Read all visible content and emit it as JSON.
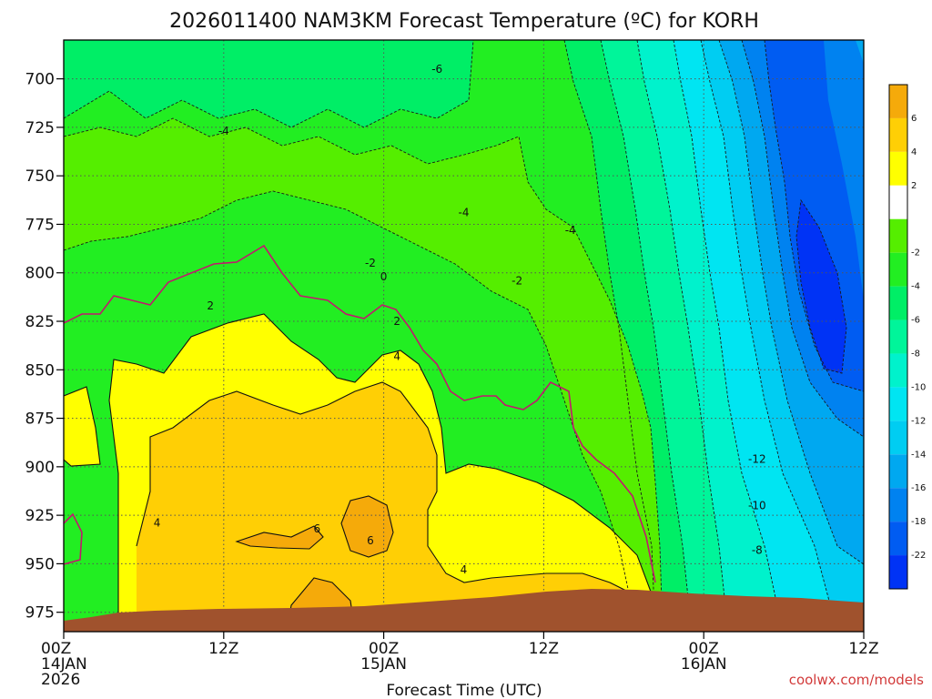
{
  "title": "2026011400 NAM3KM Forecast Temperature (ºC) for KORH",
  "credit": "coolwx.com/models",
  "colors": {
    "terrain": "#a0522d",
    "zero_line": "#c2186f"
  },
  "chart_data": {
    "type": "heatmap",
    "title": "2026011400 NAM3KM Forecast Temperature (ºC) for KORH",
    "xlabel": "Forecast Time (UTC)",
    "ylabel": "",
    "x_range_hours": [
      0,
      60
    ],
    "y_range_hpa": [
      680,
      985
    ],
    "y_ticks": [
      700,
      725,
      750,
      775,
      800,
      825,
      850,
      875,
      900,
      925,
      950,
      975
    ],
    "x_ticks": [
      {
        "hour": 0,
        "lines": [
          "00Z",
          "14JAN",
          "2026"
        ]
      },
      {
        "hour": 12,
        "lines": [
          "12Z"
        ]
      },
      {
        "hour": 24,
        "lines": [
          "00Z",
          "15JAN"
        ]
      },
      {
        "hour": 36,
        "lines": [
          "12Z"
        ]
      },
      {
        "hour": 48,
        "lines": [
          "00Z",
          "16JAN"
        ]
      },
      {
        "hour": 60,
        "lines": [
          "12Z"
        ]
      }
    ],
    "grid": true,
    "colorbar": {
      "ticks": [
        6,
        4,
        2,
        -2,
        -4,
        -6,
        -8,
        -10,
        -12,
        -14,
        -16,
        -18,
        -22
      ],
      "bands": [
        {
          "label": "≥6",
          "color": "#f5aa0a"
        },
        {
          "label": "4 to 6",
          "color": "#ffcf05"
        },
        {
          "label": "2 to 4",
          "color": "#ffff00"
        },
        {
          "label": "-2 to 2",
          "color": "#ffffff"
        },
        {
          "label": "-4 to -2",
          "color": "#55ee00"
        },
        {
          "label": "-6 to -4",
          "color": "#22ee22"
        },
        {
          "label": "-8 to -6",
          "color": "#00ee66"
        },
        {
          "label": "-10 to -8",
          "color": "#00f59a"
        },
        {
          "label": "-12 to -10",
          "color": "#00f2cc"
        },
        {
          "label": "-14 to -12",
          "color": "#00e5f2"
        },
        {
          "label": "-16 to -14",
          "color": "#00cdf2"
        },
        {
          "label": "-18 to -16",
          "color": "#00a8f0"
        },
        {
          "label": "-20 to -18",
          "color": "#0082f0"
        },
        {
          "label": "-22 to -20",
          "color": "#005cf2"
        },
        {
          "label": "<-22",
          "color": "#0033f5"
        }
      ]
    },
    "contour_labels": [
      {
        "text": "-6",
        "hour": 28,
        "hpa": 695
      },
      {
        "text": "-4",
        "hour": 12,
        "hpa": 727
      },
      {
        "text": "-4",
        "hour": 30,
        "hpa": 769
      },
      {
        "text": "-4",
        "hour": 38,
        "hpa": 778
      },
      {
        "text": "-2",
        "hour": 23,
        "hpa": 795
      },
      {
        "text": "-2",
        "hour": 34,
        "hpa": 804
      },
      {
        "text": "0",
        "hour": 24,
        "hpa": 802
      },
      {
        "text": "2",
        "hour": 11,
        "hpa": 817
      },
      {
        "text": "2",
        "hour": 25,
        "hpa": 825
      },
      {
        "text": "4",
        "hour": 25,
        "hpa": 843
      },
      {
        "text": "4",
        "hour": 7,
        "hpa": 929
      },
      {
        "text": "4",
        "hour": 30,
        "hpa": 953
      },
      {
        "text": "6",
        "hour": 19,
        "hpa": 932
      },
      {
        "text": "6",
        "hour": 23,
        "hpa": 938
      },
      {
        "text": "-12",
        "hour": 52,
        "hpa": 896
      },
      {
        "text": "-10",
        "hour": 52,
        "hpa": 920
      },
      {
        "text": "-8",
        "hour": 52,
        "hpa": 943
      }
    ]
  }
}
